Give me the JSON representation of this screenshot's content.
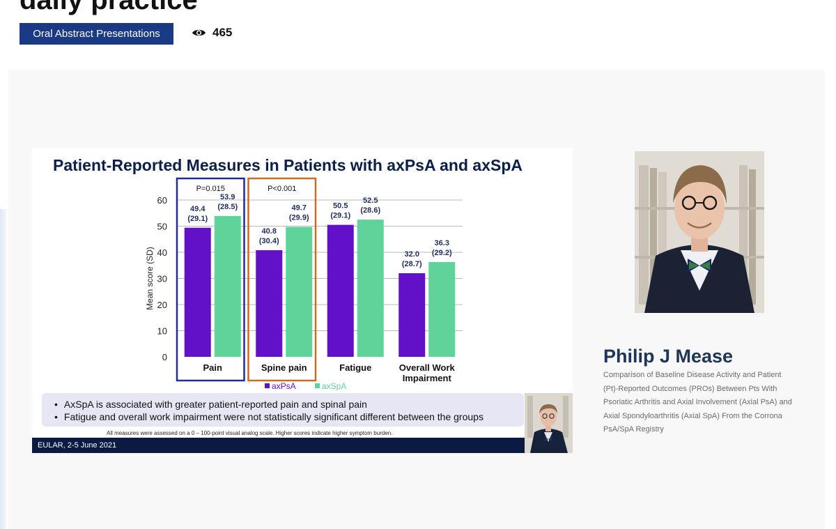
{
  "header": {
    "title": "daily practice",
    "category": "Oral Abstract Presentations",
    "views": "465"
  },
  "slide": {
    "title": "Patient-Reported Measures in Patients with axPsA and axSpA",
    "bullets": [
      "AxSpA is associated with greater patient-reported pain and spinal pain",
      "Fatigue and overall work impairment were not statistically significant different between the groups"
    ],
    "footnote": "All measures were assessed on a 0 – 100-point visual analog scale. Higher scores indicate higher symptom burden.",
    "footer": "EULAR, 2-5 June 2021"
  },
  "speaker": {
    "name": "Philip J Mease",
    "abstract": "Comparison of Baseline Disease Activity and Patient (Pt)-Reported Outcomes (PROs) Between Pts With Psoriatic Arthritis and Axial Involvement (Axial PsA) and Axial Spondyloarthritis (Axial SpA) From the Corrona PsA/SpA Registry"
  },
  "chart_data": {
    "type": "bar",
    "title": "Patient-Reported Measures in Patients with axPsA and axSpA",
    "ylabel": "Mean score (SD)",
    "ylim": [
      0,
      60
    ],
    "yticks": [
      0,
      10,
      20,
      30,
      40,
      50,
      60
    ],
    "grid": true,
    "legend_position": "bottom",
    "categories": [
      "Pain",
      "Spine pain",
      "Fatigue",
      "Overall Work Impairment"
    ],
    "category_lines": [
      [
        "Pain"
      ],
      [
        "Spine pain"
      ],
      [
        "Fatigue"
      ],
      [
        "Overall Work",
        "Impairment"
      ]
    ],
    "series": [
      {
        "name": "axPsA",
        "color": "#6211c9",
        "values": [
          49.4,
          40.8,
          50.5,
          32.0
        ],
        "sd": [
          "(29.1)",
          "(30.4)",
          "(29.1)",
          "(28.7)"
        ],
        "labels": [
          "49.4",
          "40.8",
          "50.5",
          "32.0"
        ]
      },
      {
        "name": "axSpA",
        "color": "#5fd39a",
        "values": [
          53.9,
          49.7,
          52.5,
          36.3
        ],
        "sd": [
          "(28.5)",
          "(29.9)",
          "(28.6)",
          "(29.2)"
        ],
        "labels": [
          "53.9",
          "49.7",
          "52.5",
          "36.3"
        ]
      }
    ],
    "annotations": [
      {
        "category": 0,
        "text": "P=0.015",
        "color": "#1f2d9a"
      },
      {
        "category": 1,
        "text": "P<0.001",
        "color": "#d2691e"
      }
    ]
  }
}
